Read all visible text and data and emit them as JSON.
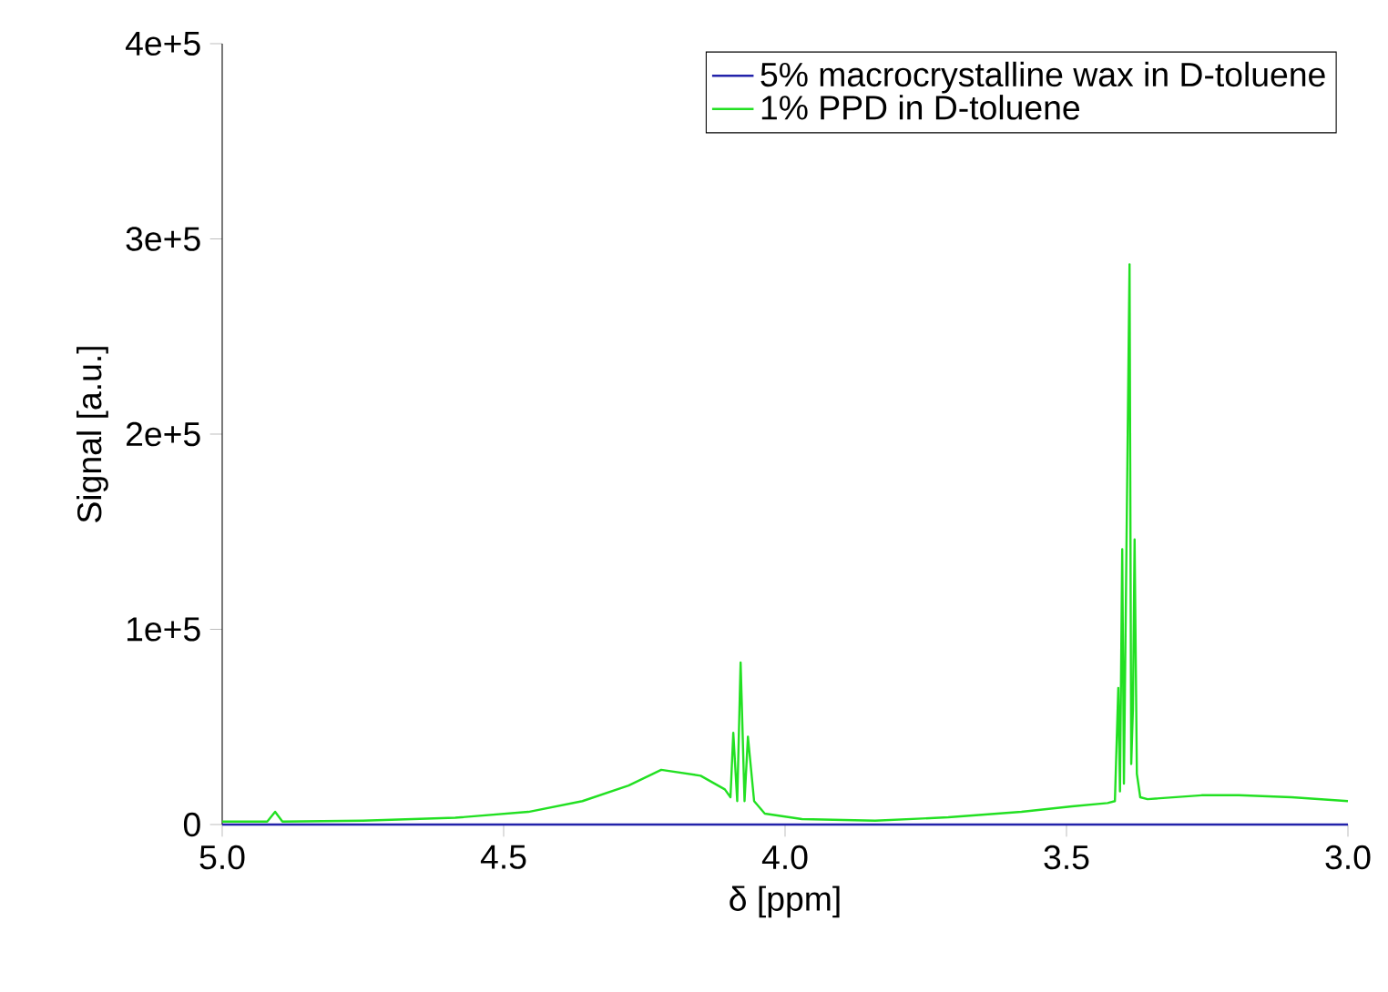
{
  "chart_data": {
    "type": "line",
    "xlabel": "δ [ppm]",
    "ylabel": "Signal [a.u.]",
    "xlim": [
      5,
      3
    ],
    "ylim": [
      0,
      400000
    ],
    "xticks": [
      {
        "value": 5,
        "label": "5.0"
      },
      {
        "value": 4.5,
        "label": "4.5"
      },
      {
        "value": 4,
        "label": "4.0"
      },
      {
        "value": 3.5,
        "label": "3.5"
      },
      {
        "value": 3,
        "label": "3.0"
      }
    ],
    "yticks": [
      {
        "value": 0,
        "label": "0"
      },
      {
        "value": 100000,
        "label": "1e+5"
      },
      {
        "value": 200000,
        "label": "2e+5"
      },
      {
        "value": 300000,
        "label": "3e+5"
      },
      {
        "value": 400000,
        "label": "4e+5"
      }
    ],
    "legend": "top right",
    "grid": false,
    "series": [
      {
        "name": "5% macrocrystalline wax in D-toluene",
        "color": "#2222aa",
        "x": [
          5.0,
          4.5,
          4.0,
          3.5,
          3.0
        ],
        "values": [
          0,
          0,
          0,
          0,
          0
        ]
      },
      {
        "name": "1% PPD in D-toluene",
        "color": "#22e022",
        "x": [
          5.0,
          4.92,
          4.906,
          4.893,
          4.75,
          4.586,
          4.456,
          4.36,
          4.278,
          4.22,
          4.15,
          4.107,
          4.097,
          4.092,
          4.085,
          4.079,
          4.072,
          4.066,
          4.055,
          4.036,
          3.97,
          3.84,
          3.71,
          3.58,
          3.49,
          3.427,
          3.414,
          3.408,
          3.405,
          3.401,
          3.398,
          3.388,
          3.385,
          3.382,
          3.379,
          3.375,
          3.369,
          3.356,
          3.26,
          3.194,
          3.1,
          3.0
        ],
        "values": [
          1500,
          1500,
          6500,
          1500,
          2000,
          3500,
          6500,
          12000,
          20000,
          28000,
          25000,
          18000,
          14000,
          47000,
          12000,
          83000,
          12000,
          45000,
          12000,
          5600,
          2800,
          2000,
          3700,
          6500,
          9300,
          11000,
          12000,
          70000,
          17000,
          141000,
          21000,
          287000,
          31000,
          59000,
          146000,
          26000,
          14000,
          13000,
          15000,
          15000,
          14000,
          12000
        ]
      }
    ]
  }
}
